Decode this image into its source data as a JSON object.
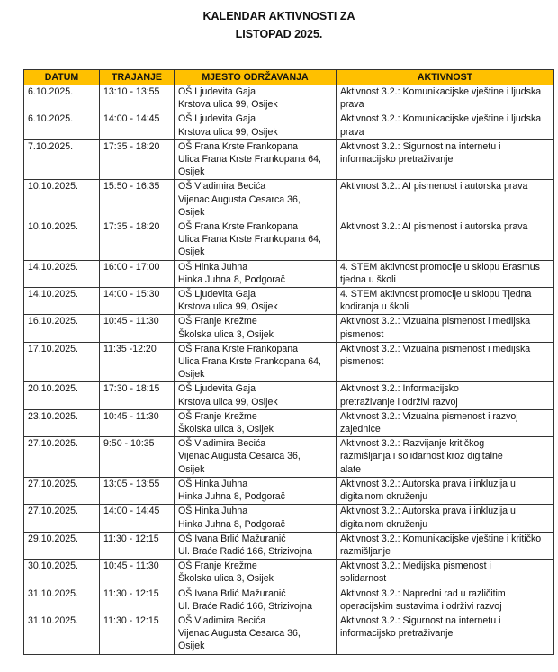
{
  "title": {
    "line1": "KALENDAR AKTIVNOSTI ZA",
    "line2": "LISTOPAD 2025."
  },
  "header_color": "#ffc000",
  "columns": [
    "DATUM",
    "TRAJANJE",
    "MJESTO ODRŽAVANJA",
    "AKTIVNOST"
  ],
  "rows": [
    {
      "date": "6.10.2025.",
      "time": "13:10 - 13:55",
      "place": "OŠ Ljudevita Gaja\nKrstova ulica 99, Osijek",
      "activity": "Aktivnost 3.2.: Komunikacijske vještine i ljudska prava"
    },
    {
      "date": "6.10.2025.",
      "time": "14:00 - 14:45",
      "place": "OŠ Ljudevita Gaja\nKrstova ulica 99, Osijek",
      "activity": "Aktivnost 3.2.: Komunikacijske vještine i ljudska prava"
    },
    {
      "date": "7.10.2025.",
      "time": "17:35 - 18:20",
      "place": "OŠ Frana Krste Frankopana\nUlica Frana Krste Frankopana 64,\nOsijek",
      "activity": "Aktivnost 3.2.: Sigurnost na internetu i informacijsko pretraživanje"
    },
    {
      "date": "10.10.2025.",
      "time": "15:50 - 16:35",
      "place": "OŠ Vladimira Becića\nVijenac Augusta Cesarca 36,\nOsijek",
      "activity": "Aktivnost 3.2.: AI pismenost i autorska prava"
    },
    {
      "date": "10.10.2025.",
      "time": "17:35 - 18:20",
      "place": "OŠ Frana Krste Frankopana\nUlica Frana Krste Frankopana 64,\nOsijek",
      "activity": "Aktivnost 3.2.: AI pismenost i autorska prava"
    },
    {
      "date": "14.10.2025.",
      "time": "16:00 - 17:00",
      "place": "OŠ Hinka Juhna\nHinka Juhna 8, Podgorač",
      "activity": "4. STEM aktivnost promocije u sklopu Erasmus tjedna u školi"
    },
    {
      "date": "14.10.2025.",
      "time": "14:00 - 15:30",
      "place": "OŠ Ljudevita Gaja\nKrstova ulica 99, Osijek",
      "activity": "4. STEM aktivnost promocije u sklopu Tjedna kodiranja u školi"
    },
    {
      "date": "16.10.2025.",
      "time": "10:45 - 11:30",
      "place": "OŠ Franje Krežme\nŠkolska ulica 3, Osijek",
      "activity": "Aktivnost 3.2.: Vizualna pismenost i medijska pismenost"
    },
    {
      "date": "17.10.2025.",
      "time": "11:35 -12:20",
      "place": "OŠ Frana Krste Frankopana\nUlica Frana Krste Frankopana 64,\nOsijek",
      "activity": "Aktivnost 3.2.: Vizualna pismenost i medijska pismenost"
    },
    {
      "date": "20.10.2025.",
      "time": "17:30 - 18:15",
      "place": "OŠ Ljudevita Gaja\nKrstova ulica 99, Osijek",
      "activity": "Aktivnost 3.2.: Informacijsko\npretraživanje i održivi razvoj"
    },
    {
      "date": "23.10.2025.",
      "time": "10:45 - 11:30",
      "place": "OŠ Franje Krežme\nŠkolska ulica 3, Osijek",
      "activity": "Aktivnost 3.2.: Vizualna pismenost i razvoj zajednice"
    },
    {
      "date": "27.10.2025.",
      "time": "9:50 - 10:35",
      "place": "OŠ Vladimira Becića\nVijenac Augusta Cesarca 36,\nOsijek",
      "activity": "Aktivnost 3.2.: Razvijanje kritičkog\nrazmišljanja i solidarnost kroz digitalne\nalate"
    },
    {
      "date": "27.10.2025.",
      "time": "13:05 - 13:55",
      "place": "OŠ Hinka Juhna\nHinka Juhna 8, Podgorač",
      "activity": "Aktivnost 3.2.: Autorska prava i inkluzija u digitalnom okruženju"
    },
    {
      "date": "27.10.2025.",
      "time": "14:00 - 14:45",
      "place": "OŠ Hinka Juhna\nHinka Juhna 8, Podgorač",
      "activity": "Aktivnost 3.2.: Autorska prava i inkluzija u digitalnom okruženju"
    },
    {
      "date": "29.10.2025.",
      "time": "11:30 - 12:15",
      "place": "OŠ Ivana Brlić Mažuranić\nUl. Braće Radić 166, Strizivojna",
      "activity": "Aktivnost 3.2.: Komunikacijske vještine i kritičko razmišljanje"
    },
    {
      "date": "30.10.2025.",
      "time": "10:45 - 11:30",
      "place": "OŠ Franje Krežme\nŠkolska ulica 3, Osijek",
      "activity": "Aktivnost 3.2.: Medijska pismenost i\nsolidarnost"
    },
    {
      "date": "31.10.2025.",
      "time": "11:30 - 12:15",
      "place": "OŠ Ivana Brlić Mažuranić\nUl. Braće Radić 166, Strizivojna",
      "activity": "Aktivnost 3.2.: Napredni rad u različitim\noperacijskim sustavima i održivi razvoj"
    },
    {
      "date": "31.10.2025.",
      "time": "11:30 - 12:15",
      "place": "OŠ Vladimira Becića\nVijenac Augusta Cesarca 36,\nOsijek",
      "activity": "Aktivnost 3.2.: Sigurnost na internetu i informacijsko pretraživanje"
    }
  ]
}
